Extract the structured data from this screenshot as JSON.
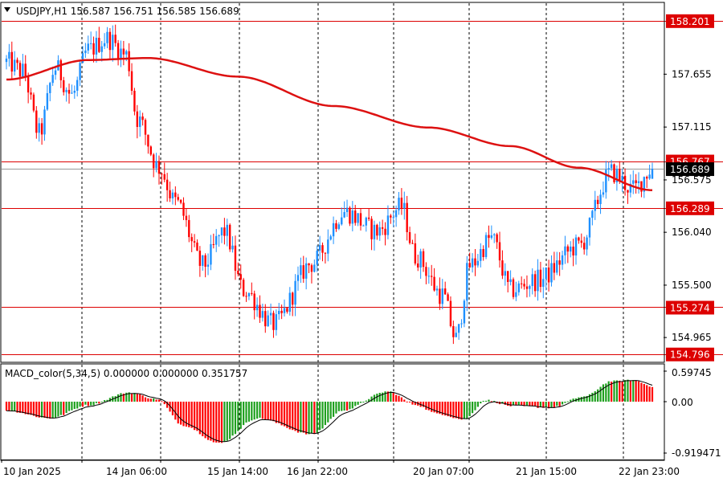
{
  "header": {
    "symbol_line": "USDJPY,H1  156.587 156.751 156.585 156.689"
  },
  "macd": {
    "label": "MACD_color(5,34,5) 0.000000 0.000000 0.351757",
    "ticks": [
      "0.59745",
      "0.00",
      "-0.919471"
    ]
  },
  "colors": {
    "bull": "#1e90ff",
    "bear": "#ff0000",
    "ma": "#dd1111",
    "level": "#dd0000",
    "hist_up": "#1ea01e",
    "hist_down": "#ff0000"
  },
  "chart_data": [
    {
      "type": "candlestick",
      "symbol": "USDJPY",
      "timeframe": "H1",
      "last_bar": {
        "open": 156.587,
        "high": 156.751,
        "low": 156.585,
        "close": 156.689
      },
      "ylim": [
        154.72,
        158.38
      ],
      "y_ticks": [
        "157.655",
        "157.115",
        "156.575",
        "156.040",
        "155.500",
        "154.965"
      ],
      "x_ticks": [
        "10 Jan 2025",
        "14 Jan 06:00",
        "15 Jan 14:00",
        "16 Jan 22:00",
        "20 Jan 07:00",
        "21 Jan 15:00",
        "22 Jan 23:00"
      ],
      "levels": [
        "158.201",
        "156.767",
        "156.289",
        "155.274",
        "154.796"
      ],
      "current_price_label": "156.689",
      "price_path": [
        [
          0,
          157.78
        ],
        [
          6,
          157.68
        ],
        [
          12,
          157.05
        ],
        [
          18,
          157.72
        ],
        [
          24,
          157.44
        ],
        [
          30,
          157.9
        ],
        [
          37,
          158.02
        ],
        [
          44,
          157.85
        ],
        [
          48,
          157.2
        ],
        [
          56,
          156.7
        ],
        [
          62,
          156.35
        ],
        [
          72,
          155.7
        ],
        [
          80,
          156.05
        ],
        [
          87,
          155.45
        ],
        [
          98,
          155.1
        ],
        [
          112,
          155.72
        ],
        [
          124,
          156.25
        ],
        [
          136,
          156.05
        ],
        [
          145,
          156.3
        ],
        [
          150,
          155.8
        ],
        [
          160,
          155.4
        ],
        [
          165,
          154.95
        ],
        [
          170,
          155.7
        ],
        [
          178,
          155.98
        ],
        [
          185,
          155.45
        ],
        [
          195,
          155.55
        ],
        [
          210,
          155.9
        ],
        [
          222,
          156.65
        ],
        [
          230,
          156.48
        ],
        [
          237,
          156.69
        ]
      ],
      "ma_path": [
        [
          0,
          157.6
        ],
        [
          30,
          157.8
        ],
        [
          52,
          157.82
        ],
        [
          85,
          157.63
        ],
        [
          120,
          157.33
        ],
        [
          155,
          157.11
        ],
        [
          185,
          156.92
        ],
        [
          210,
          156.7
        ],
        [
          237,
          156.47
        ]
      ],
      "macd_values": [
        [
          0,
          -0.15
        ],
        [
          16,
          -0.28
        ],
        [
          30,
          -0.06
        ],
        [
          45,
          0.18
        ],
        [
          55,
          0.05
        ],
        [
          65,
          -0.4
        ],
        [
          78,
          -0.7
        ],
        [
          92,
          -0.28
        ],
        [
          112,
          -0.55
        ],
        [
          124,
          -0.14
        ],
        [
          140,
          0.2
        ],
        [
          150,
          -0.05
        ],
        [
          158,
          -0.2
        ],
        [
          168,
          -0.3
        ],
        [
          176,
          0.03
        ],
        [
          185,
          -0.07
        ],
        [
          200,
          -0.1
        ],
        [
          212,
          0.1
        ],
        [
          222,
          0.4
        ],
        [
          230,
          0.42
        ],
        [
          237,
          0.3
        ]
      ]
    }
  ]
}
